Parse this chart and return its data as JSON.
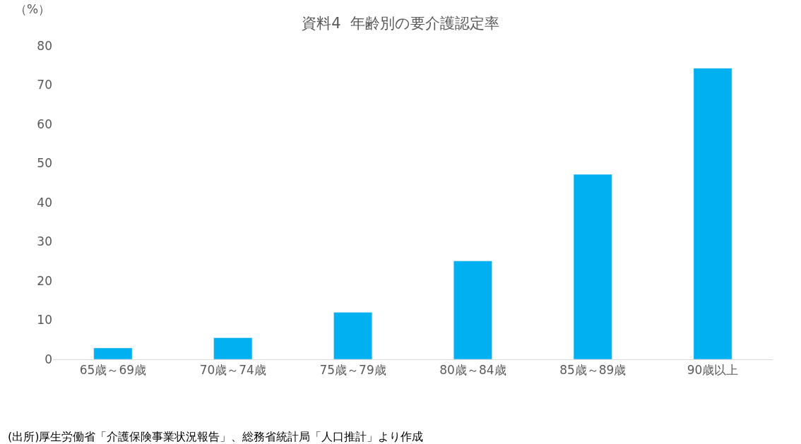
{
  "chart_data": {
    "type": "bar",
    "title": "資料4  年齢別の要介護認定率",
    "ylabel": "（%）",
    "categories": [
      "65歳～69歳",
      "70歳～74歳",
      "75歳～79歳",
      "80歳～84歳",
      "85歳～89歳",
      "90歳以上"
    ],
    "values": [
      2.9,
      5.5,
      12.0,
      25.1,
      47.2,
      74.3
    ],
    "color": "#00b0f0",
    "ylim": [
      0,
      80
    ],
    "yticks": [
      0,
      10,
      20,
      30,
      40,
      50,
      60,
      70,
      80
    ],
    "annotations": [
      "(出所)厚生労働省「介護保険事業状況報告」、総務省統計局「人口推計」より作成"
    ]
  }
}
